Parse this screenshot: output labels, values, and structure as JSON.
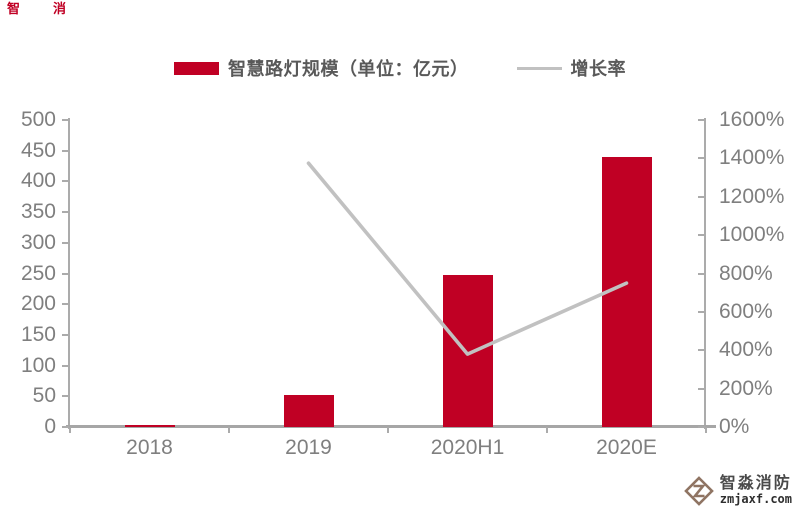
{
  "watermarks": {
    "top_left_glyphs": [
      "智",
      "消"
    ]
  },
  "legend": {
    "items": [
      {
        "label": "智慧路灯规模（单位：亿元）",
        "type": "bar",
        "color": "#C00024"
      },
      {
        "label": "增长率",
        "type": "line",
        "color": "#C1C1C1"
      }
    ]
  },
  "chart_data": {
    "type": "bar",
    "subtype": "combo-bar-line",
    "title": "",
    "categories": [
      "2018",
      "2019",
      "2020H1",
      "2020E"
    ],
    "series": [
      {
        "name": "智慧路灯规模（单位：亿元）",
        "type": "bar",
        "axis": "left",
        "color": "#C00024",
        "values": [
          4,
          52,
          247,
          440
        ]
      },
      {
        "name": "增长率",
        "type": "line",
        "axis": "right",
        "color": "#C1C1C1",
        "values": [
          null,
          1375,
          380,
          750
        ]
      }
    ],
    "left_axis": {
      "min": 0,
      "max": 500,
      "step": 50,
      "tick_labels": [
        "500",
        "450",
        "400",
        "350",
        "300",
        "250",
        "200",
        "150",
        "100",
        "50",
        "0"
      ]
    },
    "right_axis": {
      "min": 0,
      "max": 1600,
      "step": 200,
      "tick_labels": [
        "1600%",
        "1400%",
        "1200%",
        "1000%",
        "800%",
        "600%",
        "400%",
        "200%",
        "0%"
      ],
      "unit": "%"
    },
    "grid": false,
    "legend_position": "top"
  },
  "branding": {
    "name": "智淼消防",
    "domain": "zmjaxf.com",
    "icon": "diamond-logo",
    "icon_color": "#8F7463"
  },
  "colors": {
    "bar": "#C00024",
    "line": "#C1C1C1",
    "axis": "#ABABAB",
    "tick_text": "#7F7F7F",
    "legend_text": "#595959"
  }
}
